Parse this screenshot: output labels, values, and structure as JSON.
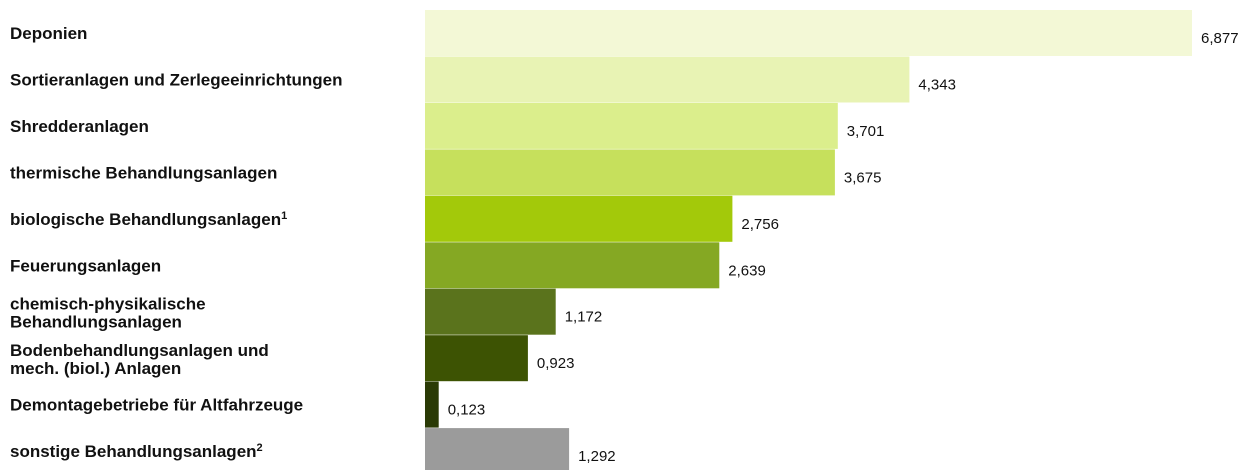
{
  "chart_data": {
    "type": "bar",
    "orientation": "horizontal",
    "categories": [
      {
        "lines": [
          "Deponien"
        ],
        "sup": ""
      },
      {
        "lines": [
          "Sortieranlagen und Zerlegeeinrichtungen"
        ],
        "sup": ""
      },
      {
        "lines": [
          "Shredderanlagen"
        ],
        "sup": ""
      },
      {
        "lines": [
          "thermische Behandlungsanlagen"
        ],
        "sup": ""
      },
      {
        "lines": [
          "biologische Behandlungsanlagen"
        ],
        "sup": "1"
      },
      {
        "lines": [
          "Feuerungsanlagen"
        ],
        "sup": ""
      },
      {
        "lines": [
          "chemisch-physikalische",
          "Behandlungsanlagen"
        ],
        "sup": ""
      },
      {
        "lines": [
          "Bodenbehandlungsanlagen und",
          "mech. (biol.) Anlagen"
        ],
        "sup": ""
      },
      {
        "lines": [
          "Demontagebetriebe für Altfahrzeuge"
        ],
        "sup": ""
      },
      {
        "lines": [
          "sonstige Behandlungsanlagen"
        ],
        "sup": "2"
      }
    ],
    "values": [
      6.877,
      4.343,
      3.701,
      3.675,
      2.756,
      2.639,
      1.172,
      0.923,
      0.123,
      1.292
    ],
    "value_labels": [
      "6,877",
      "4,343",
      "3,701",
      "3,675",
      "2,756",
      "2,639",
      "1,172",
      "0,923",
      "0,123",
      "1,292"
    ],
    "colors": [
      "#f3f8d6",
      "#e8f3b4",
      "#dbee8c",
      "#c6e05c",
      "#a3c90a",
      "#85a823",
      "#5a731c",
      "#3d5303",
      "#2a3a05",
      "#9b9b9b"
    ],
    "xlim": [
      0,
      6.877
    ],
    "grid": false,
    "legend": "none"
  }
}
